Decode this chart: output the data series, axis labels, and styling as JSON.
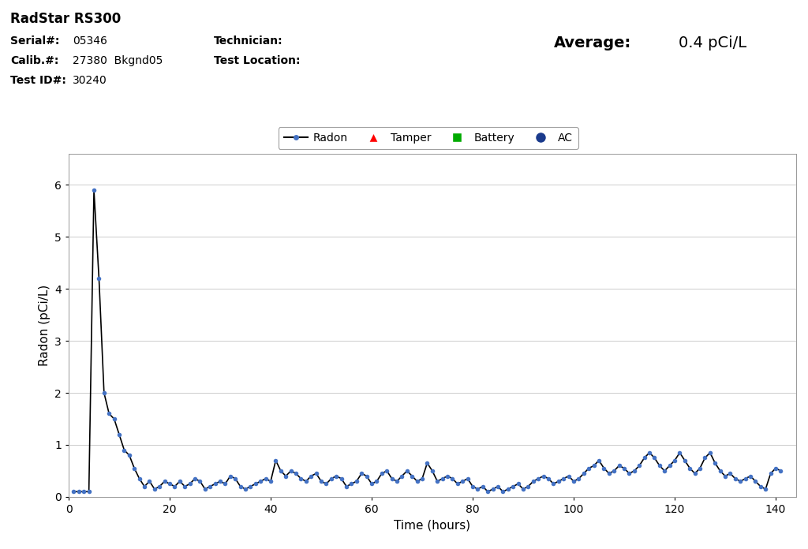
{
  "title": "RadStar RS300",
  "serial": "05346",
  "calib": "27380  Bkgnd05",
  "test_id": "30240",
  "average_value": "0.4 pCi/L",
  "xlabel": "Time (hours)",
  "ylabel": "Radon (pCi/L)",
  "xlim": [
    0,
    144
  ],
  "ylim": [
    0,
    6.6
  ],
  "yticks": [
    0,
    1,
    2,
    3,
    4,
    5,
    6
  ],
  "xticks": [
    0,
    20,
    40,
    60,
    80,
    100,
    120,
    140
  ],
  "bg_color": "#ffffff",
  "plot_bg_color": "#ffffff",
  "line_color": "#000000",
  "dot_color": "#4472C4",
  "time_data": [
    1,
    2,
    3,
    4,
    5,
    6,
    7,
    8,
    9,
    10,
    11,
    12,
    13,
    14,
    15,
    16,
    17,
    18,
    19,
    20,
    21,
    22,
    23,
    24,
    25,
    26,
    27,
    28,
    29,
    30,
    31,
    32,
    33,
    34,
    35,
    36,
    37,
    38,
    39,
    40,
    41,
    42,
    43,
    44,
    45,
    46,
    47,
    48,
    49,
    50,
    51,
    52,
    53,
    54,
    55,
    56,
    57,
    58,
    59,
    60,
    61,
    62,
    63,
    64,
    65,
    66,
    67,
    68,
    69,
    70,
    71,
    72,
    73,
    74,
    75,
    76,
    77,
    78,
    79,
    80,
    81,
    82,
    83,
    84,
    85,
    86,
    87,
    88,
    89,
    90,
    91,
    92,
    93,
    94,
    95,
    96,
    97,
    98,
    99,
    100,
    101,
    102,
    103,
    104,
    105,
    106,
    107,
    108,
    109,
    110,
    111,
    112,
    113,
    114,
    115,
    116,
    117,
    118,
    119,
    120,
    121,
    122,
    123,
    124,
    125,
    126,
    127,
    128,
    129,
    130,
    131,
    132,
    133,
    134,
    135,
    136,
    137,
    138,
    139,
    140,
    141
  ],
  "radon_data": [
    0.1,
    0.1,
    0.1,
    0.1,
    5.9,
    4.2,
    2.0,
    1.6,
    1.5,
    1.2,
    0.9,
    0.8,
    0.55,
    0.35,
    0.2,
    0.3,
    0.15,
    0.2,
    0.3,
    0.25,
    0.2,
    0.3,
    0.2,
    0.25,
    0.35,
    0.3,
    0.15,
    0.2,
    0.25,
    0.3,
    0.25,
    0.4,
    0.35,
    0.2,
    0.15,
    0.2,
    0.25,
    0.3,
    0.35,
    0.3,
    0.7,
    0.5,
    0.4,
    0.5,
    0.45,
    0.35,
    0.3,
    0.4,
    0.45,
    0.3,
    0.25,
    0.35,
    0.4,
    0.35,
    0.2,
    0.25,
    0.3,
    0.45,
    0.4,
    0.25,
    0.3,
    0.45,
    0.5,
    0.35,
    0.3,
    0.4,
    0.5,
    0.4,
    0.3,
    0.35,
    0.65,
    0.5,
    0.3,
    0.35,
    0.4,
    0.35,
    0.25,
    0.3,
    0.35,
    0.2,
    0.15,
    0.2,
    0.1,
    0.15,
    0.2,
    0.1,
    0.15,
    0.2,
    0.25,
    0.15,
    0.2,
    0.3,
    0.35,
    0.4,
    0.35,
    0.25,
    0.3,
    0.35,
    0.4,
    0.3,
    0.35,
    0.45,
    0.55,
    0.6,
    0.7,
    0.55,
    0.45,
    0.5,
    0.6,
    0.55,
    0.45,
    0.5,
    0.6,
    0.75,
    0.85,
    0.75,
    0.6,
    0.5,
    0.6,
    0.7,
    0.85,
    0.7,
    0.55,
    0.45,
    0.55,
    0.75,
    0.85,
    0.65,
    0.5,
    0.4,
    0.45,
    0.35,
    0.3,
    0.35,
    0.4,
    0.3,
    0.2,
    0.15,
    0.45,
    0.55,
    0.5
  ]
}
